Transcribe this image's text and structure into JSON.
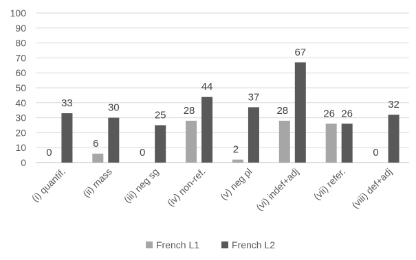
{
  "chart_data": {
    "type": "bar",
    "categories": [
      "(i) quantif.",
      "(ii) mass",
      "(iii) neg sg",
      "(iv) non-ref.",
      "(v) neg pl",
      "(vi) indef+adj",
      "(vii) refer.",
      "(viii) def+adj"
    ],
    "series": [
      {
        "name": "French L1",
        "values": [
          0,
          6,
          0,
          28,
          2,
          28,
          26,
          0
        ],
        "color": "#a6a6a6"
      },
      {
        "name": "French L2",
        "values": [
          33,
          30,
          25,
          44,
          37,
          67,
          26,
          32
        ],
        "color": "#595959"
      }
    ],
    "yticks": [
      "0",
      "10",
      "20",
      "30",
      "40",
      "50",
      "60",
      "70",
      "80",
      "90",
      "100"
    ],
    "ylim": [
      0,
      100
    ],
    "grid": true,
    "legend_position": "bottom"
  }
}
